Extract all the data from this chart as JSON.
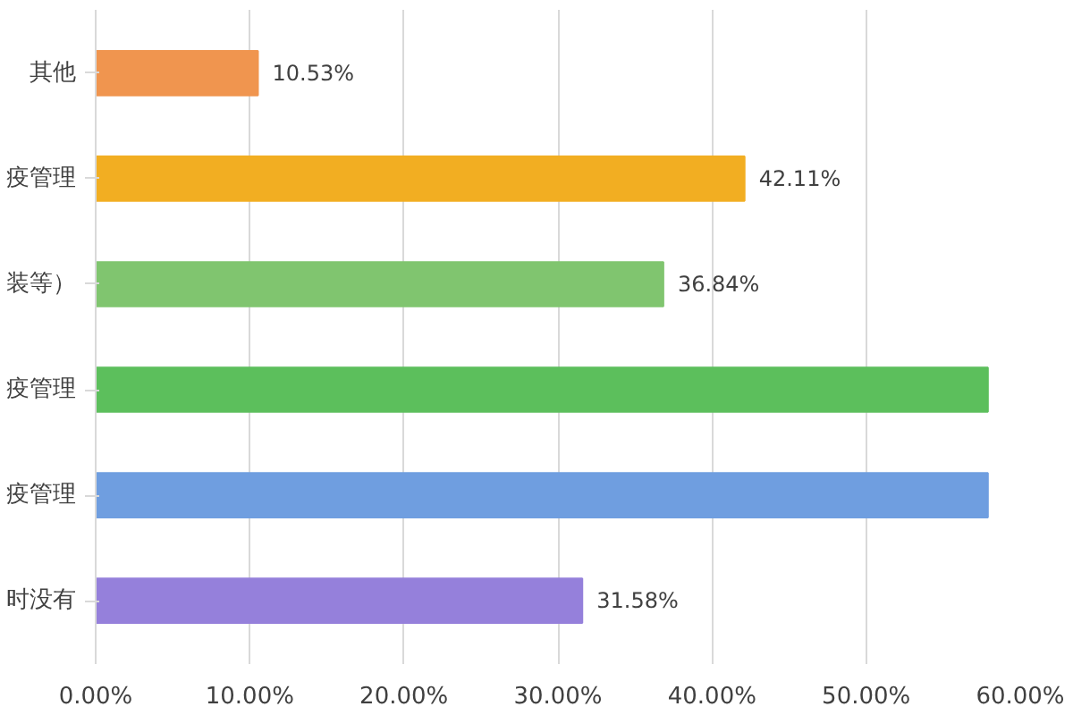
{
  "chart_data": {
    "type": "bar",
    "orientation": "horizontal",
    "categories": [
      "其他",
      "疫管理",
      "装等）",
      "疫管理",
      "疫管理",
      "时没有"
    ],
    "values": [
      10.53,
      42.11,
      36.84,
      57.9,
      57.9,
      31.58
    ],
    "colors": [
      "#f0954f",
      "#f2ae22",
      "#80c56f",
      "#5cbf5c",
      "#6f9ee0",
      "#9580db"
    ],
    "value_labels": [
      "10.53%",
      "42.11%",
      "36.84%",
      null,
      null,
      "31.58%"
    ],
    "xlim": [
      0,
      60
    ],
    "xticks": [
      {
        "value": 0,
        "label": "0.00%"
      },
      {
        "value": 10,
        "label": "10.00%"
      },
      {
        "value": 20,
        "label": "20.00%"
      },
      {
        "value": 30,
        "label": "30.00%"
      },
      {
        "value": 40,
        "label": "40.00%"
      },
      {
        "value": 50,
        "label": "50.00%"
      },
      {
        "value": 60,
        "label": "60.00%"
      }
    ],
    "grid": "x"
  }
}
